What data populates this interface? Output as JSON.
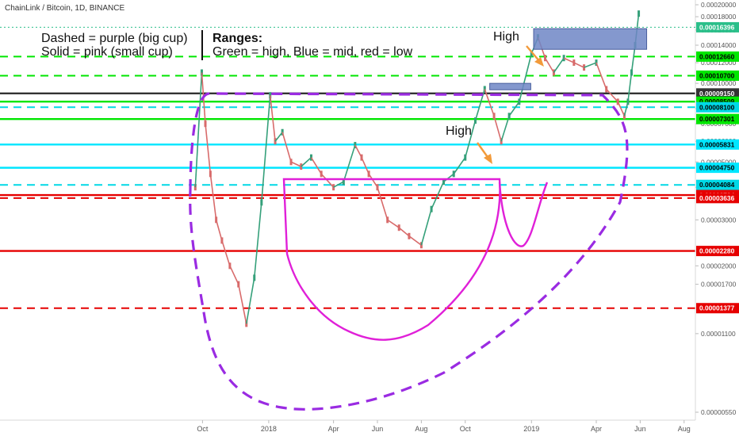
{
  "header": {
    "symbol": "ChainLink / Bitcoin, 1D, BINANCE"
  },
  "notes": {
    "left_line1": "Dashed = purple (big cup)",
    "left_line2": "Solid = pink (small cup)",
    "ranges_title": "Ranges:",
    "ranges_text": "Green = high, Blue = mid, red = low",
    "high_label_1": "High",
    "high_label_2": "High"
  },
  "chart_data": {
    "type": "line",
    "title": "",
    "xlabel": "",
    "ylabel": "",
    "x_ticks": [
      "Oct",
      "2018",
      "Apr",
      "Jun",
      "Aug",
      "Oct",
      "2019",
      "Apr",
      "Jun",
      "Aug"
    ],
    "x_tick_dates": [
      "2017-10-01",
      "2018-01-01",
      "2018-04-01",
      "2018-06-01",
      "2018-08-01",
      "2018-10-01",
      "2019-01-01",
      "2019-04-01",
      "2019-06-01",
      "2019-08-01"
    ],
    "x_range": [
      "2017-08-01",
      "2019-08-31"
    ],
    "y_ticks": [
      "0.00020000",
      "0.00018000",
      "0.00016000",
      "0.00014000",
      "0.00012000",
      "0.00010000",
      "0.00008000",
      "0.00007000",
      "0.00006000",
      "0.00005000",
      "0.00004000",
      "0.00003000",
      "0.00002000",
      "0.00001700",
      "0.00001100",
      "0.00000550"
    ],
    "ylim": [
      5.5e-06,
      0.0002
    ],
    "y_scale": "log",
    "current_price": "0.00016396",
    "price_series": {
      "name": "",
      "color": "#4caf87",
      "x": [
        "2017-09-21",
        "2017-09-30",
        "2017-10-05",
        "2017-10-12",
        "2017-10-20",
        "2017-10-28",
        "2017-11-08",
        "2017-11-20",
        "2017-12-01",
        "2017-12-12",
        "2017-12-22",
        "2018-01-03",
        "2018-01-10",
        "2018-01-20",
        "2018-02-01",
        "2018-02-15",
        "2018-03-01",
        "2018-03-15",
        "2018-04-01",
        "2018-04-15",
        "2018-05-01",
        "2018-05-10",
        "2018-05-20",
        "2018-06-01",
        "2018-06-15",
        "2018-07-01",
        "2018-07-15",
        "2018-08-01",
        "2018-08-15",
        "2018-09-01",
        "2018-09-15",
        "2018-10-01",
        "2018-10-15",
        "2018-10-28",
        "2018-11-10",
        "2018-11-20",
        "2018-12-01",
        "2018-12-15",
        "2019-01-01",
        "2019-01-10",
        "2019-01-20",
        "2019-02-01",
        "2019-02-15",
        "2019-03-01",
        "2019-03-15",
        "2019-04-01",
        "2019-04-15",
        "2019-05-01",
        "2019-05-10",
        "2019-05-15",
        "2019-05-20",
        "2019-05-25",
        "2019-05-30"
      ],
      "y": [
        4e-05,
        0.00011,
        7e-05,
        4.5e-05,
        3e-05,
        2.5e-05,
        2e-05,
        1.7e-05,
        1.2e-05,
        1.8e-05,
        3.5e-05,
        9e-05,
        6e-05,
        6.5e-05,
        5e-05,
        4.8e-05,
        5.2e-05,
        4.5e-05,
        4e-05,
        4.2e-05,
        5.8e-05,
        5.2e-05,
        4.5e-05,
        4e-05,
        3e-05,
        2.8e-05,
        2.6e-05,
        2.4e-05,
        3.3e-05,
        4.2e-05,
        4.5e-05,
        5.2e-05,
        7.2e-05,
        9.5e-05,
        7.5e-05,
        6e-05,
        7.5e-05,
        8.5e-05,
        0.00013,
        0.00015,
        0.000125,
        0.00011,
        0.000125,
        0.00012,
        0.000115,
        0.00012,
        9.5e-05,
        8.5e-05,
        7.5e-05,
        8.5e-05,
        0.00011,
        0.00014,
        0.000185
      ]
    },
    "levels": [
      {
        "label": "0.00012660",
        "value": 0.0001266,
        "color": "#00e600",
        "style": "dashed"
      },
      {
        "label": "0.00010700",
        "value": 0.000107,
        "color": "#00e600",
        "style": "dashed"
      },
      {
        "label": "0.00009150",
        "value": 9.15e-05,
        "color": "#333333",
        "style": "solid"
      },
      {
        "label": "0.00008509",
        "value": 8.509e-05,
        "color": "#00e600",
        "style": "solid"
      },
      {
        "label": "0.00008100",
        "value": 8.1e-05,
        "color": "#00d8e6",
        "style": "dashed"
      },
      {
        "label": "0.00007301",
        "value": 7.301e-05,
        "color": "#00e600",
        "style": "solid"
      },
      {
        "label": "0.00005831",
        "value": 5.831e-05,
        "color": "#00e6ff",
        "style": "solid"
      },
      {
        "label": "0.00004750",
        "value": 4.75e-05,
        "color": "#00e6ff",
        "style": "solid"
      },
      {
        "label": "0.00004084",
        "value": 4.084e-05,
        "color": "#00d8e6",
        "style": "dashed"
      },
      {
        "label": "0.00003734",
        "value": 3.734e-05,
        "color": "#e60000",
        "style": "solid"
      },
      {
        "label": "0.00003636",
        "value": 3.636e-05,
        "color": "#e60000",
        "style": "dashed"
      },
      {
        "label": "0.00002280",
        "value": 2.28e-05,
        "color": "#e60000",
        "style": "solid"
      },
      {
        "label": "0.00001377",
        "value": 1.377e-05,
        "color": "#e60000",
        "style": "dashed"
      }
    ],
    "boxes": [
      {
        "x": [
          "2018-11-04",
          "2018-12-31"
        ],
        "y": [
          9.45e-05,
          0.0001
        ],
        "color": "#6f86c6"
      },
      {
        "x": [
          "2019-01-04",
          "2019-06-10"
        ],
        "y": [
          0.000135,
          0.000162
        ],
        "color": "#6f86c6"
      }
    ],
    "colors": {
      "big_cup": "#9a2be2",
      "small_cup": "#e020d8",
      "arrow": "#f29a3a",
      "current_price_badge": "#2bbf8a"
    }
  }
}
